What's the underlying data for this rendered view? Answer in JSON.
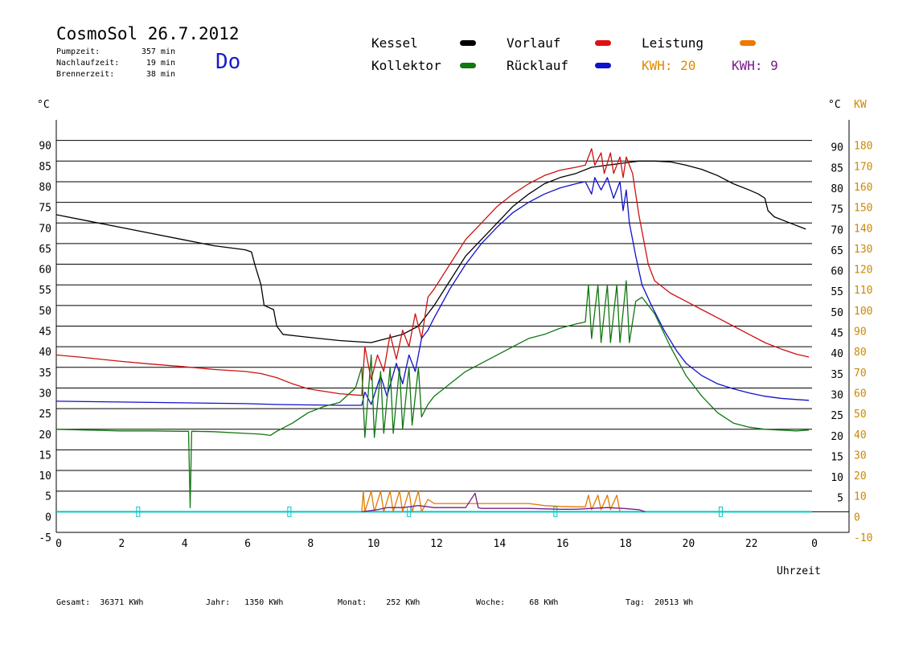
{
  "header": {
    "title": "CosmoSol 26.7.2012",
    "day": "Do",
    "stats": [
      {
        "label": "Pumpzeit:",
        "value": "357 min"
      },
      {
        "label": "Nachlaufzeit:",
        "value": "19 min"
      },
      {
        "label": "Brennerzeit:",
        "value": "38 min"
      }
    ]
  },
  "legend": {
    "kessel": "Kessel",
    "vorlauf": "Vorlauf",
    "leistung": "Leistung",
    "kollektor": "Kollektor",
    "ruecklauf": "Rücklauf",
    "kwh1": "KWH: 20",
    "kwh2": "KWH: 9"
  },
  "colors": {
    "kessel": "#000000",
    "vorlauf": "#cc1111",
    "ruecklauf": "#1111cc",
    "kollektor": "#117711",
    "leistung": "#e07b00",
    "leistung_axis": "#cc8800",
    "purple": "#7a1a8a",
    "cyan": "#00c8c8",
    "grid": "#000000"
  },
  "footer": {
    "gesamt_label": "Gesamt:",
    "gesamt_value": "36371 KWh",
    "jahr_label": "Jahr:",
    "jahr_value": "1350 KWh",
    "monat_label": "Monat:",
    "monat_value": "252 KWh",
    "woche_label": "Woche:",
    "woche_value": "68 KWh",
    "tag_label": "Tag:",
    "tag_value": "20513 Wh"
  },
  "chart_data": {
    "type": "line",
    "xlabel": "Uhrzeit",
    "ylabel_left": "°C",
    "ylabel_right_c": "°C",
    "ylabel_right_kw": "KW",
    "xlim": [
      0,
      24
    ],
    "ylim": [
      -5,
      95
    ],
    "x_ticks": [
      "0",
      "2",
      "4",
      "6",
      "8",
      "10",
      "12",
      "14",
      "16",
      "18",
      "20",
      "22",
      "0"
    ],
    "y_ticks_left": [
      "90",
      "85",
      "80",
      "75",
      "70",
      "65",
      "60",
      "55",
      "50",
      "45",
      "40",
      "35",
      "30",
      "25",
      "20",
      "15",
      "10",
      "5",
      "0",
      "-5"
    ],
    "y_ticks_right_c": [
      "90",
      "85",
      "80",
      "75",
      "70",
      "65",
      "60",
      "55",
      "50",
      "45",
      "40",
      "35",
      "30",
      "25",
      "20",
      "15",
      "10",
      "5"
    ],
    "y_ticks_right_kw": [
      "180",
      "170",
      "160",
      "150",
      "140",
      "130",
      "120",
      "110",
      "100",
      "90",
      "80",
      "70",
      "60",
      "50",
      "40",
      "30",
      "20",
      "10",
      "0",
      "-10"
    ],
    "grid_y": [
      90,
      85,
      80,
      75,
      70,
      65,
      60,
      55,
      50,
      45,
      40,
      35,
      30,
      25,
      20,
      15,
      10,
      5,
      0
    ],
    "series": [
      {
        "name": "Kessel",
        "color": "#000000",
        "points": [
          [
            0,
            72
          ],
          [
            1,
            70.5
          ],
          [
            2,
            69
          ],
          [
            3,
            67.5
          ],
          [
            4,
            66
          ],
          [
            5,
            64.5
          ],
          [
            6,
            63.5
          ],
          [
            6.2,
            63
          ],
          [
            6.3,
            60
          ],
          [
            6.5,
            55
          ],
          [
            6.6,
            50
          ],
          [
            6.9,
            49
          ],
          [
            7.0,
            45
          ],
          [
            7.2,
            43
          ],
          [
            8,
            42.3
          ],
          [
            9,
            41.5
          ],
          [
            10,
            41
          ],
          [
            10.5,
            42
          ],
          [
            11,
            43
          ],
          [
            11.5,
            45
          ],
          [
            12,
            50
          ],
          [
            12.5,
            56
          ],
          [
            13,
            62
          ],
          [
            13.5,
            66
          ],
          [
            14,
            70
          ],
          [
            14.5,
            74
          ],
          [
            15,
            77
          ],
          [
            15.5,
            79.5
          ],
          [
            16,
            81
          ],
          [
            16.5,
            82
          ],
          [
            17,
            83.5
          ],
          [
            17.5,
            84
          ],
          [
            18,
            84.5
          ],
          [
            18.5,
            85
          ],
          [
            19,
            85
          ],
          [
            19.5,
            84.8
          ],
          [
            20,
            84
          ],
          [
            20.5,
            83
          ],
          [
            21,
            81.5
          ],
          [
            21.5,
            79.5
          ],
          [
            22,
            78
          ],
          [
            22.3,
            77
          ],
          [
            22.5,
            76
          ],
          [
            22.6,
            73
          ],
          [
            22.8,
            71.5
          ],
          [
            23.3,
            70
          ],
          [
            23.8,
            68.5
          ]
        ]
      },
      {
        "name": "Vorlauf",
        "color": "#cc1111",
        "points": [
          [
            0,
            38
          ],
          [
            1,
            37.3
          ],
          [
            2,
            36.5
          ],
          [
            3,
            35.8
          ],
          [
            4,
            35.2
          ],
          [
            5,
            34.5
          ],
          [
            6,
            34
          ],
          [
            6.5,
            33.5
          ],
          [
            7,
            32.5
          ],
          [
            7.5,
            31
          ],
          [
            8,
            29.8
          ],
          [
            9,
            28.6
          ],
          [
            9.7,
            28.2
          ],
          [
            9.8,
            40
          ],
          [
            10,
            32
          ],
          [
            10.2,
            38
          ],
          [
            10.4,
            34
          ],
          [
            10.6,
            43
          ],
          [
            10.8,
            37
          ],
          [
            11,
            44
          ],
          [
            11.2,
            40
          ],
          [
            11.4,
            48
          ],
          [
            11.6,
            42
          ],
          [
            11.8,
            52
          ],
          [
            12,
            54
          ],
          [
            12.5,
            60
          ],
          [
            13,
            66
          ],
          [
            13.5,
            70
          ],
          [
            14,
            74
          ],
          [
            14.5,
            77
          ],
          [
            15,
            79.5
          ],
          [
            15.5,
            81.5
          ],
          [
            16,
            82.8
          ],
          [
            16.5,
            83.5
          ],
          [
            16.8,
            84
          ],
          [
            17,
            88
          ],
          [
            17.1,
            84
          ],
          [
            17.3,
            87
          ],
          [
            17.4,
            82
          ],
          [
            17.6,
            87
          ],
          [
            17.7,
            82
          ],
          [
            17.9,
            86
          ],
          [
            18,
            81
          ],
          [
            18.1,
            86
          ],
          [
            18.2,
            84
          ],
          [
            18.3,
            82
          ],
          [
            18.5,
            72
          ],
          [
            18.8,
            60
          ],
          [
            19,
            56
          ],
          [
            19.5,
            53
          ],
          [
            20,
            51
          ],
          [
            20.5,
            49
          ],
          [
            21,
            47
          ],
          [
            21.5,
            45
          ],
          [
            22,
            43
          ],
          [
            22.5,
            41
          ],
          [
            23,
            39.5
          ],
          [
            23.5,
            38.2
          ],
          [
            23.9,
            37.5
          ]
        ]
      },
      {
        "name": "Rücklauf",
        "color": "#1111cc",
        "points": [
          [
            0,
            26.8
          ],
          [
            2,
            26.6
          ],
          [
            4,
            26.4
          ],
          [
            6,
            26.2
          ],
          [
            7,
            26
          ],
          [
            8,
            25.9
          ],
          [
            9,
            25.8
          ],
          [
            9.7,
            25.8
          ],
          [
            9.8,
            29
          ],
          [
            10,
            26
          ],
          [
            10.3,
            33
          ],
          [
            10.5,
            28
          ],
          [
            10.8,
            36
          ],
          [
            11,
            31
          ],
          [
            11.2,
            38
          ],
          [
            11.4,
            34
          ],
          [
            11.6,
            42
          ],
          [
            11.8,
            44
          ],
          [
            12,
            47
          ],
          [
            12.5,
            54
          ],
          [
            13,
            60
          ],
          [
            13.5,
            65
          ],
          [
            14,
            69
          ],
          [
            14.5,
            72.5
          ],
          [
            15,
            75
          ],
          [
            15.5,
            77
          ],
          [
            16,
            78.5
          ],
          [
            16.5,
            79.5
          ],
          [
            16.8,
            80
          ],
          [
            17,
            77
          ],
          [
            17.1,
            81
          ],
          [
            17.3,
            78
          ],
          [
            17.5,
            81
          ],
          [
            17.7,
            76
          ],
          [
            17.9,
            80
          ],
          [
            18,
            73
          ],
          [
            18.1,
            78
          ],
          [
            18.2,
            70
          ],
          [
            18.4,
            62
          ],
          [
            18.6,
            55
          ],
          [
            18.9,
            50
          ],
          [
            19.3,
            44
          ],
          [
            19.7,
            39
          ],
          [
            20,
            36
          ],
          [
            20.5,
            33
          ],
          [
            21,
            31
          ],
          [
            21.5,
            29.8
          ],
          [
            22,
            28.8
          ],
          [
            22.5,
            28
          ],
          [
            23,
            27.5
          ],
          [
            23.5,
            27.2
          ],
          [
            23.9,
            27
          ]
        ]
      },
      {
        "name": "Kollektor",
        "color": "#117711",
        "points": [
          [
            0,
            20
          ],
          [
            1,
            19.8
          ],
          [
            2,
            19.6
          ],
          [
            3,
            19.6
          ],
          [
            4,
            19.5
          ],
          [
            4.2,
            19.5
          ],
          [
            4.25,
            1
          ],
          [
            4.3,
            19.5
          ],
          [
            5,
            19.4
          ],
          [
            6,
            19
          ],
          [
            6.5,
            18.8
          ],
          [
            6.8,
            18.5
          ],
          [
            7,
            19.5
          ],
          [
            7.5,
            21.5
          ],
          [
            8,
            24
          ],
          [
            8.5,
            25.5
          ],
          [
            9,
            26.5
          ],
          [
            9.5,
            30
          ],
          [
            9.7,
            35
          ],
          [
            9.8,
            18
          ],
          [
            10,
            38
          ],
          [
            10.1,
            18
          ],
          [
            10.3,
            34
          ],
          [
            10.4,
            19
          ],
          [
            10.6,
            35
          ],
          [
            10.7,
            19
          ],
          [
            10.9,
            35
          ],
          [
            11,
            20
          ],
          [
            11.2,
            35
          ],
          [
            11.3,
            21
          ],
          [
            11.5,
            35
          ],
          [
            11.6,
            23
          ],
          [
            11.8,
            26
          ],
          [
            12,
            28
          ],
          [
            12.5,
            31
          ],
          [
            13,
            34
          ],
          [
            13.5,
            36
          ],
          [
            14,
            38
          ],
          [
            14.5,
            40
          ],
          [
            15,
            42
          ],
          [
            15.5,
            43
          ],
          [
            16,
            44.5
          ],
          [
            16.5,
            45.5
          ],
          [
            16.8,
            46
          ],
          [
            16.9,
            55
          ],
          [
            17,
            42
          ],
          [
            17.2,
            55
          ],
          [
            17.3,
            41
          ],
          [
            17.5,
            55
          ],
          [
            17.6,
            41
          ],
          [
            17.8,
            55
          ],
          [
            17.9,
            41
          ],
          [
            18.1,
            56
          ],
          [
            18.2,
            41
          ],
          [
            18.4,
            51
          ],
          [
            18.6,
            52
          ],
          [
            19,
            48
          ],
          [
            19.5,
            40
          ],
          [
            20,
            33
          ],
          [
            20.5,
            28
          ],
          [
            21,
            24
          ],
          [
            21.5,
            21.5
          ],
          [
            22,
            20.5
          ],
          [
            22.5,
            20
          ],
          [
            23,
            19.8
          ],
          [
            23.5,
            19.6
          ],
          [
            23.9,
            19.8
          ]
        ]
      },
      {
        "name": "Leistung",
        "color": "#e07b00",
        "points": [
          [
            9.7,
            0
          ],
          [
            9.75,
            5
          ],
          [
            9.8,
            0
          ],
          [
            10,
            5
          ],
          [
            10.1,
            0
          ],
          [
            10.3,
            5
          ],
          [
            10.4,
            0
          ],
          [
            10.6,
            5
          ],
          [
            10.7,
            0
          ],
          [
            10.9,
            5
          ],
          [
            11,
            0
          ],
          [
            11.2,
            5
          ],
          [
            11.3,
            0
          ],
          [
            11.5,
            5
          ],
          [
            11.6,
            0
          ],
          [
            11.8,
            3
          ],
          [
            12,
            2
          ],
          [
            13,
            2
          ],
          [
            14,
            2
          ],
          [
            15,
            2
          ],
          [
            15.5,
            1.5
          ],
          [
            16,
            1.3
          ],
          [
            16.5,
            1.2
          ],
          [
            16.8,
            1.2
          ],
          [
            16.9,
            4
          ],
          [
            17,
            0.5
          ],
          [
            17.2,
            4
          ],
          [
            17.3,
            0.5
          ],
          [
            17.5,
            4
          ],
          [
            17.6,
            0.5
          ],
          [
            17.8,
            4
          ],
          [
            17.9,
            0
          ]
        ]
      },
      {
        "name": "",
        "color": "#7a1a8a",
        "points": [
          [
            9.7,
            0
          ],
          [
            10.2,
            0.5
          ],
          [
            10.5,
            1
          ],
          [
            11,
            1
          ],
          [
            11.5,
            1.5
          ],
          [
            12,
            1
          ],
          [
            13,
            1
          ],
          [
            13.3,
            4.5
          ],
          [
            13.4,
            1
          ],
          [
            13.5,
            0.8
          ],
          [
            14,
            0.8
          ],
          [
            15,
            0.8
          ],
          [
            16,
            0.6
          ],
          [
            16.5,
            0.6
          ],
          [
            17,
            0.8
          ],
          [
            17.5,
            1
          ],
          [
            18,
            0.8
          ],
          [
            18.5,
            0.5
          ],
          [
            18.7,
            0
          ]
        ]
      }
    ]
  }
}
